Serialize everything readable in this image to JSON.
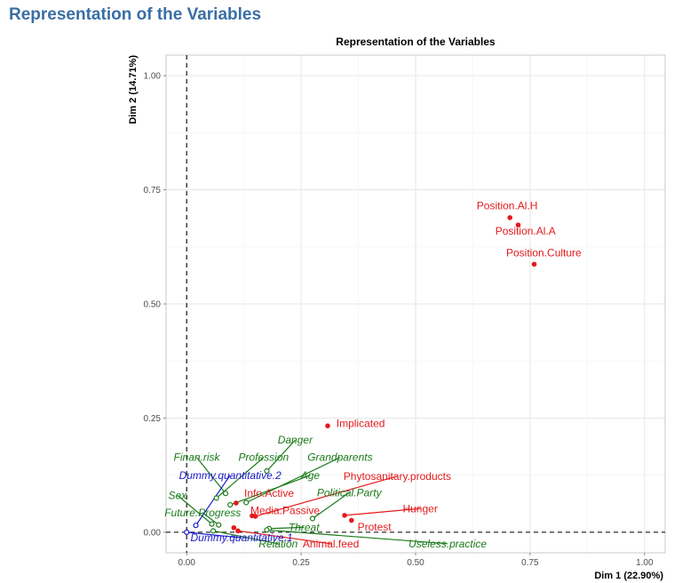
{
  "page": {
    "title": "Representation of the Variables"
  },
  "chart_data": {
    "type": "scatter",
    "title": "Representation of the Variables",
    "xlabel": "Dim 1 (22.90%)",
    "ylabel": "Dim 2 (14.71%)",
    "xlim": [
      -0.045,
      1.045
    ],
    "ylim": [
      -0.045,
      1.045
    ],
    "xticks": [
      0.0,
      0.25,
      0.5,
      0.75,
      1.0
    ],
    "yticks": [
      0.0,
      0.25,
      0.5,
      0.75,
      1.0
    ],
    "xtick_labels": [
      "0.00",
      "0.25",
      "0.50",
      "0.75",
      "1.00"
    ],
    "ytick_labels": [
      "0.00",
      "0.25",
      "0.50",
      "0.75",
      "1.00"
    ],
    "grid": true,
    "reference_lines": {
      "x": 0,
      "y": 0,
      "style": "dashed"
    },
    "colors": {
      "active": "#e41a1c",
      "illustrative": "#1a7a1a",
      "quantitative": "#1a1acd"
    },
    "series": [
      {
        "group": "active",
        "color": "#e41a1c",
        "marker": "filled",
        "points": [
          {
            "label": "Position.Al.H",
            "x": 0.706,
            "y": 0.689,
            "label_x": 0.7,
            "label_y": 0.707,
            "leader": false
          },
          {
            "label": "Position.Al.A",
            "x": 0.724,
            "y": 0.673,
            "label_x": 0.74,
            "label_y": 0.652,
            "leader": false
          },
          {
            "label": "Position.Culture",
            "x": 0.759,
            "y": 0.587,
            "label_x": 0.78,
            "label_y": 0.604,
            "leader": false
          },
          {
            "label": "Implicated",
            "x": 0.308,
            "y": 0.233,
            "label_x": 0.38,
            "label_y": 0.23,
            "leader": false
          },
          {
            "label": "Phytosanitary.products",
            "x": 0.15,
            "y": 0.035,
            "label_x": 0.46,
            "label_y": 0.115,
            "leader": true
          },
          {
            "label": "Info.Active",
            "x": 0.108,
            "y": 0.064,
            "label_x": 0.18,
            "label_y": 0.078,
            "leader": false
          },
          {
            "label": "Media.Passive",
            "x": 0.143,
            "y": 0.036,
            "label_x": 0.215,
            "label_y": 0.04,
            "leader": false
          },
          {
            "label": "Hunger",
            "x": 0.345,
            "y": 0.037,
            "label_x": 0.51,
            "label_y": 0.044,
            "leader": true
          },
          {
            "label": "Protest",
            "x": 0.36,
            "y": 0.026,
            "label_x": 0.41,
            "label_y": 0.004,
            "leader": false
          },
          {
            "label": "Animal.feed",
            "x": 0.112,
            "y": 0.003,
            "label_x": 0.315,
            "label_y": -0.033,
            "leader": true
          },
          {
            "label": "",
            "x": 0.103,
            "y": 0.01,
            "label_x": 0.103,
            "label_y": 0.01,
            "leader": false
          }
        ]
      },
      {
        "group": "illustrative",
        "color": "#1a7a1a",
        "marker": "open",
        "points": [
          {
            "label": "Danger",
            "x": 0.175,
            "y": 0.134,
            "label_x": 0.237,
            "label_y": 0.194,
            "leader": true
          },
          {
            "label": "Finan.risk",
            "x": 0.085,
            "y": 0.085,
            "label_x": 0.022,
            "label_y": 0.156,
            "leader": true
          },
          {
            "label": "Profession",
            "x": 0.065,
            "y": 0.075,
            "label_x": 0.168,
            "label_y": 0.156,
            "leader": true
          },
          {
            "label": "Grandparents",
            "x": 0.13,
            "y": 0.065,
            "label_x": 0.335,
            "label_y": 0.156,
            "leader": true
          },
          {
            "label": "Age",
            "x": 0.095,
            "y": 0.06,
            "label_x": 0.27,
            "label_y": 0.117,
            "leader": true
          },
          {
            "label": "Political.Party",
            "x": 0.275,
            "y": 0.03,
            "label_x": 0.355,
            "label_y": 0.079,
            "leader": true
          },
          {
            "label": "Sex",
            "x": 0.055,
            "y": 0.018,
            "label_x": -0.02,
            "label_y": 0.073,
            "leader": true
          },
          {
            "label": "Future.Progress",
            "x": 0.07,
            "y": 0.016,
            "label_x": 0.035,
            "label_y": 0.035,
            "leader": true
          },
          {
            "label": "Threat",
            "x": 0.18,
            "y": 0.008,
            "label_x": 0.256,
            "label_y": 0.003,
            "leader": true
          },
          {
            "label": "Relation",
            "x": 0.058,
            "y": 0.003,
            "label_x": 0.2,
            "label_y": -0.033,
            "leader": true
          },
          {
            "label": "Useless.practice",
            "x": 0.175,
            "y": 0.005,
            "label_x": 0.57,
            "label_y": -0.033,
            "leader": true
          }
        ]
      },
      {
        "group": "quantitative",
        "color": "#1a1acd",
        "marker": "open",
        "points": [
          {
            "label": "Dummy.quantitative.2",
            "x": 0.02,
            "y": 0.015,
            "label_x": 0.095,
            "label_y": 0.117,
            "leader": true
          },
          {
            "label": "Dummy.quantitative.1",
            "x": 0.0,
            "y": 0.0,
            "label_x": 0.12,
            "label_y": -0.02,
            "leader": true
          }
        ]
      }
    ]
  }
}
